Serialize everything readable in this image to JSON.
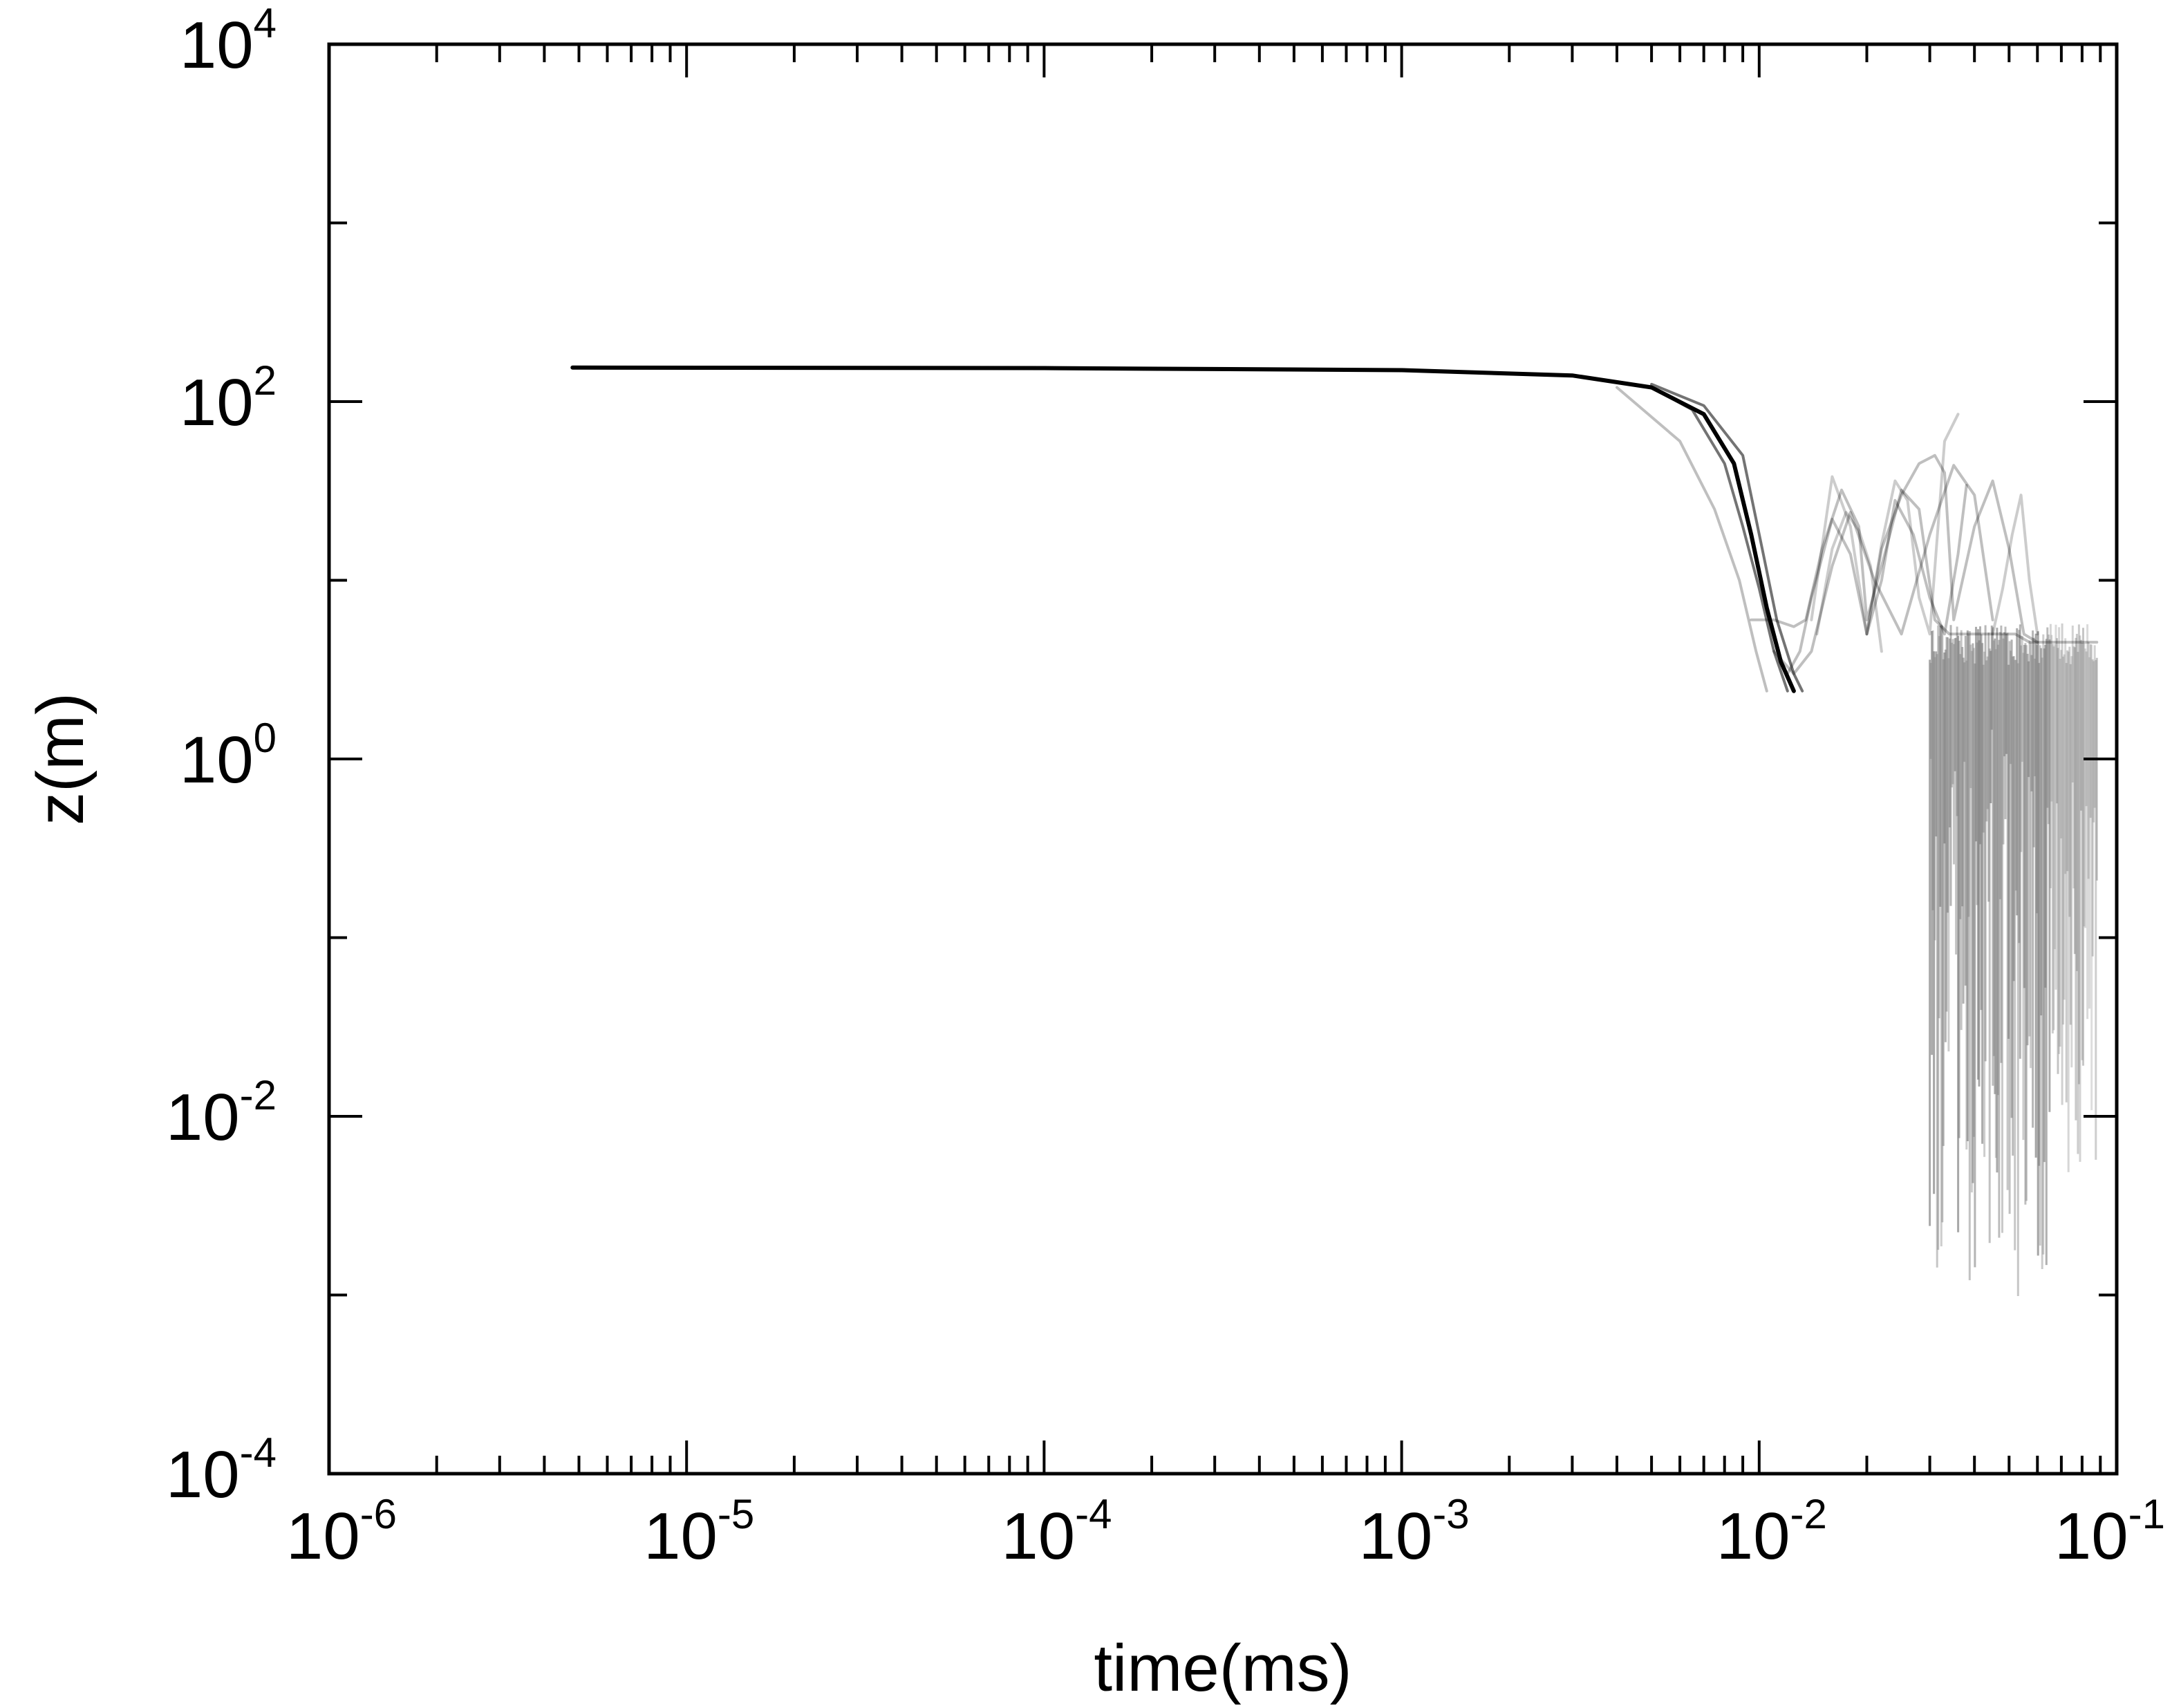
{
  "chart_data": {
    "type": "line",
    "xlabel": "time(ms)",
    "ylabel": "z(m)",
    "x_scale": "log",
    "y_scale": "log",
    "xlim": [
      1e-06,
      0.1
    ],
    "ylim": [
      0.0001,
      10000.0
    ],
    "grid": false,
    "legend": "none",
    "x_ticks": [
      {
        "base": "10",
        "exp": "-6",
        "value": 1e-06
      },
      {
        "base": "10",
        "exp": "-5",
        "value": 1e-05
      },
      {
        "base": "10",
        "exp": "-4",
        "value": 0.0001
      },
      {
        "base": "10",
        "exp": "-3",
        "value": 0.001
      },
      {
        "base": "10",
        "exp": "-2",
        "value": 0.01
      },
      {
        "base": "10",
        "exp": "-1",
        "value": 0.1
      }
    ],
    "y_ticks": [
      {
        "base": "10",
        "exp": "-4",
        "value": 0.0001
      },
      {
        "base": "10",
        "exp": "-2",
        "value": 0.01
      },
      {
        "base": "10",
        "exp": "0",
        "value": 1
      },
      {
        "base": "10",
        "exp": "2",
        "value": 100
      },
      {
        "base": "10",
        "exp": "4",
        "value": 10000.0
      }
    ],
    "y_minor_ticks": [
      0.001,
      0.1,
      10,
      1000
    ],
    "line_color": "#000000",
    "series": [
      {
        "color": "#000000",
        "opacity": 1.0,
        "x": [
          4.8e-06,
          0.0001,
          0.001,
          0.003,
          0.005,
          0.007,
          0.0085,
          0.0095,
          0.0105,
          0.0115,
          0.0125
        ],
        "y": [
          155,
          154,
          150,
          140,
          120,
          85,
          45,
          18,
          7,
          3.5,
          2.4
        ]
      },
      {
        "color": "#000000",
        "opacity": 0.55,
        "x": [
          0.005,
          0.0065,
          0.008,
          0.009,
          0.01,
          0.011,
          0.012
        ],
        "y": [
          120,
          90,
          45,
          20,
          9,
          4,
          2.4
        ]
      },
      {
        "color": "#000000",
        "opacity": 0.55,
        "x": [
          0.005,
          0.007,
          0.009,
          0.0102,
          0.0112,
          0.0125,
          0.0132
        ],
        "y": [
          125,
          95,
          50,
          15,
          6,
          3,
          2.4
        ]
      },
      {
        "color": "#000000",
        "opacity": 0.25,
        "x": [
          0.004,
          0.006,
          0.0075,
          0.0088,
          0.0098,
          0.0105
        ],
        "y": [
          120,
          60,
          25,
          10,
          4,
          2.4
        ]
      },
      {
        "color": "#000000",
        "opacity": 0.25,
        "x": [
          0.0095,
          0.011,
          0.0125,
          0.0135,
          0.015,
          0.017,
          0.019,
          0.02,
          0.022,
          0.025,
          0.028,
          0.031,
          0.034,
          0.038,
          0.042,
          0.045,
          0.048,
          0.052,
          0.057,
          0.062,
          0.067,
          0.072,
          0.078,
          0.085,
          0.088
        ],
        "y": [
          6,
          6,
          5.5,
          6,
          15,
          32,
          20,
          6,
          12,
          32,
          25,
          6,
          5,
          5,
          5,
          5,
          5,
          5,
          4.5,
          4.5,
          4.5,
          4.5,
          4.5,
          4.5,
          4.5
        ]
      },
      {
        "color": "#000000",
        "opacity": 0.25,
        "x": [
          0.012,
          0.013,
          0.014,
          0.016,
          0.018,
          0.02,
          0.022,
          0.024,
          0.027,
          0.03,
          0.033,
          0.036,
          0.038
        ],
        "y": [
          3,
          4,
          8,
          22,
          14,
          5,
          10,
          28,
          18,
          8,
          5,
          14,
          34
        ]
      },
      {
        "color": "#000000",
        "opacity": 0.25,
        "x": [
          0.02,
          0.022,
          0.025,
          0.028,
          0.031,
          0.033,
          0.035,
          0.04,
          0.045,
          0.05,
          0.055,
          0.06
        ],
        "y": [
          5,
          15,
          30,
          45,
          50,
          40,
          6,
          20,
          36,
          15,
          5,
          4.5
        ]
      },
      {
        "color": "#000000",
        "opacity": 0.25,
        "x": [
          0.011,
          0.0125,
          0.014,
          0.016,
          0.018,
          0.021,
          0.025,
          0.03,
          0.035,
          0.04,
          0.045
        ],
        "y": [
          4,
          3,
          4,
          12,
          24,
          10,
          5,
          18,
          44,
          30,
          6
        ]
      },
      {
        "color": "#000000",
        "opacity": 0.2,
        "x": [
          0.014,
          0.016,
          0.018,
          0.02,
          0.022,
          0.024,
          0.026,
          0.028,
          0.03,
          0.033,
          0.036
        ],
        "y": [
          6,
          38,
          20,
          5,
          16,
          36,
          28,
          8,
          5,
          60,
          85
        ]
      },
      {
        "color": "#000000",
        "opacity": 0.2,
        "x": [
          0.0145,
          0.016,
          0.0175,
          0.019,
          0.0205,
          0.022
        ],
        "y": [
          5,
          15,
          24,
          19,
          12,
          4
        ]
      },
      {
        "color": "#000000",
        "opacity": 0.2,
        "x": [
          0.045,
          0.048,
          0.051,
          0.054,
          0.057,
          0.06
        ],
        "y": [
          5,
          9,
          18,
          30,
          10,
          5
        ]
      }
    ],
    "noise_region": {
      "x_start": 0.03,
      "x_end": 0.088,
      "x_dense_end": 0.065,
      "y_top": 4.8,
      "y_min": 0.00015,
      "color": "#777777"
    }
  }
}
